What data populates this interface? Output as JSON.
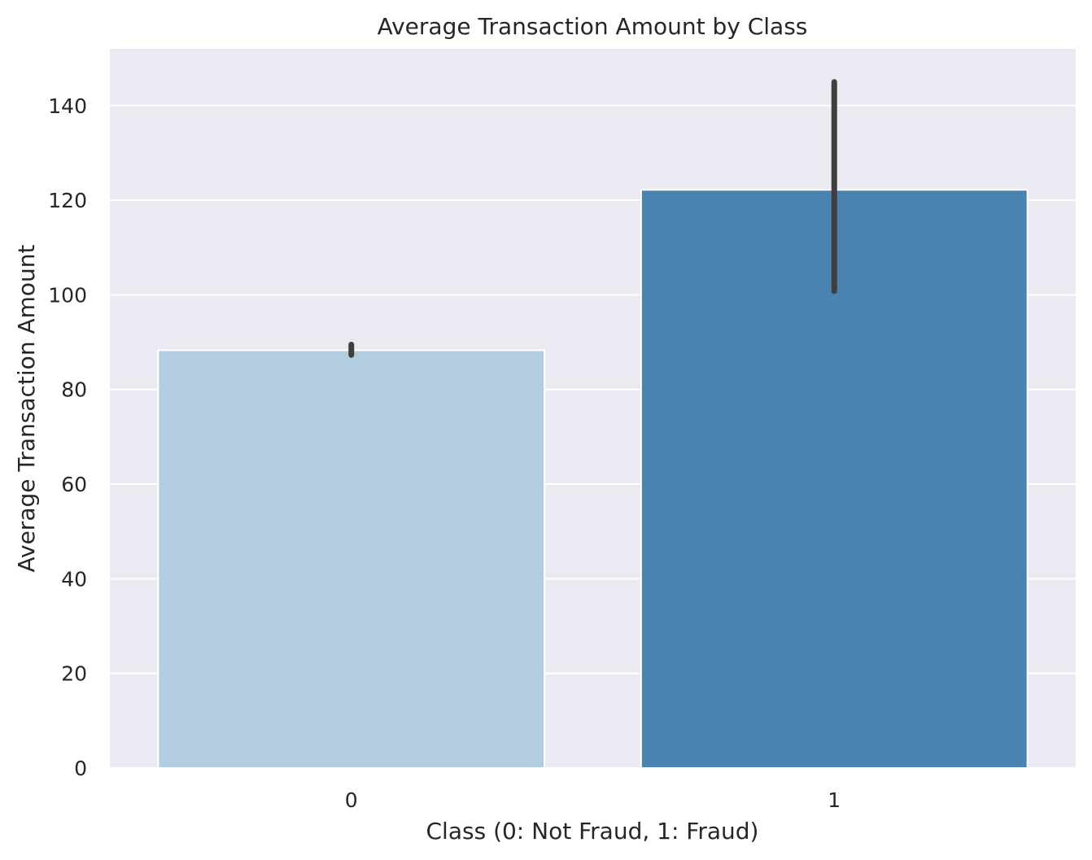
{
  "chart_data": {
    "type": "bar",
    "title": "Average Transaction Amount by Class",
    "xlabel": "Class (0: Not Fraud, 1: Fraud)",
    "ylabel": "Average Transaction Amount",
    "categories": [
      "0",
      "1"
    ],
    "values": [
      88.3,
      122.2
    ],
    "error_bars": [
      {
        "low": 87.3,
        "high": 89.5
      },
      {
        "low": 100.8,
        "high": 145.0
      }
    ],
    "bar_colors": [
      "#b3cde0",
      "#4984b0"
    ],
    "error_bar_color": "#3f3f3f",
    "ylim": [
      0,
      152
    ],
    "yticks": [
      0,
      20,
      40,
      60,
      80,
      100,
      120,
      140
    ],
    "grid": true,
    "background_color": "#eaeaf2",
    "grid_color": "#ffffff"
  }
}
